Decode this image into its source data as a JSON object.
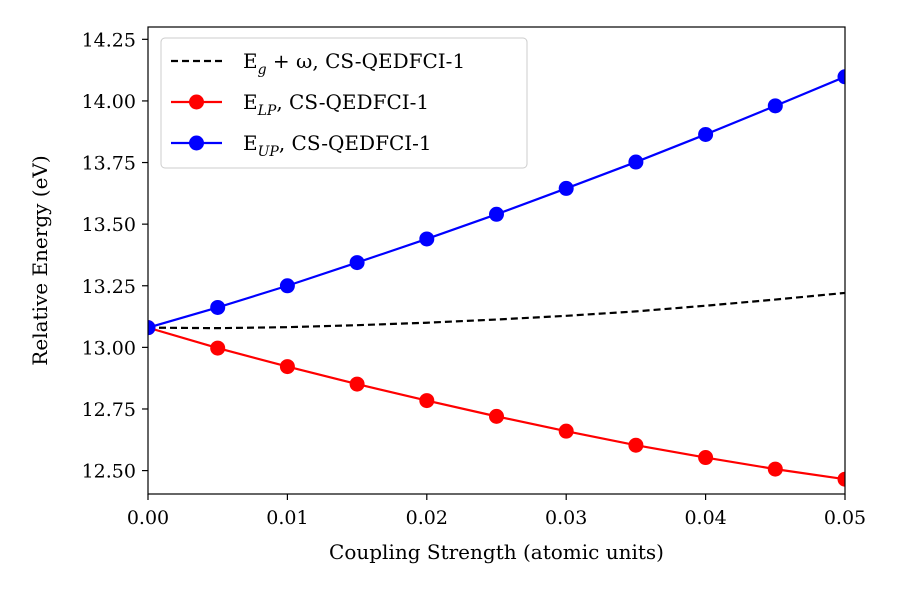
{
  "chart_data": {
    "type": "line",
    "xlabel": "Coupling Strength (atomic units)",
    "ylabel": "Relative Energy (eV)",
    "xlim": [
      0.0,
      0.05
    ],
    "ylim": [
      12.405,
      14.3
    ],
    "xticks": [
      "0.00",
      "0.01",
      "0.02",
      "0.03",
      "0.04",
      "0.05"
    ],
    "yticks": [
      "12.50",
      "12.75",
      "13.00",
      "13.25",
      "13.50",
      "13.75",
      "14.00",
      "14.25"
    ],
    "grid": false,
    "legend_position": "top-left",
    "x": [
      0.0,
      0.005,
      0.01,
      0.015,
      0.02,
      0.025,
      0.03,
      0.035,
      0.04,
      0.045,
      0.05
    ],
    "series": [
      {
        "name": "E_g + ω, CS-QEDFCI-1",
        "legend": {
          "base": "E",
          "sub": "g",
          "rest": " + ω, CS-QEDFCI-1"
        },
        "color": "#000000",
        "style": "dashed",
        "marker": "none",
        "values": [
          13.08,
          13.078,
          13.082,
          13.09,
          13.1,
          13.113,
          13.128,
          13.146,
          13.169,
          13.194,
          13.221
        ]
      },
      {
        "name": "E_LP, CS-QEDFCI-1",
        "legend": {
          "base": "E",
          "sub": "LP",
          "rest": ", CS-QEDFCI-1"
        },
        "color": "#ff0000",
        "style": "solid",
        "marker": "circle",
        "values": [
          13.08,
          12.997,
          12.922,
          12.851,
          12.784,
          12.72,
          12.66,
          12.603,
          12.553,
          12.506,
          12.465
        ]
      },
      {
        "name": "E_UP, CS-QEDFCI-1",
        "legend": {
          "base": "E",
          "sub": "UP",
          "rest": ", CS-QEDFCI-1"
        },
        "color": "#0000ff",
        "style": "solid",
        "marker": "circle",
        "values": [
          13.08,
          13.162,
          13.25,
          13.344,
          13.44,
          13.54,
          13.645,
          13.752,
          13.864,
          13.98,
          14.098
        ]
      }
    ]
  }
}
